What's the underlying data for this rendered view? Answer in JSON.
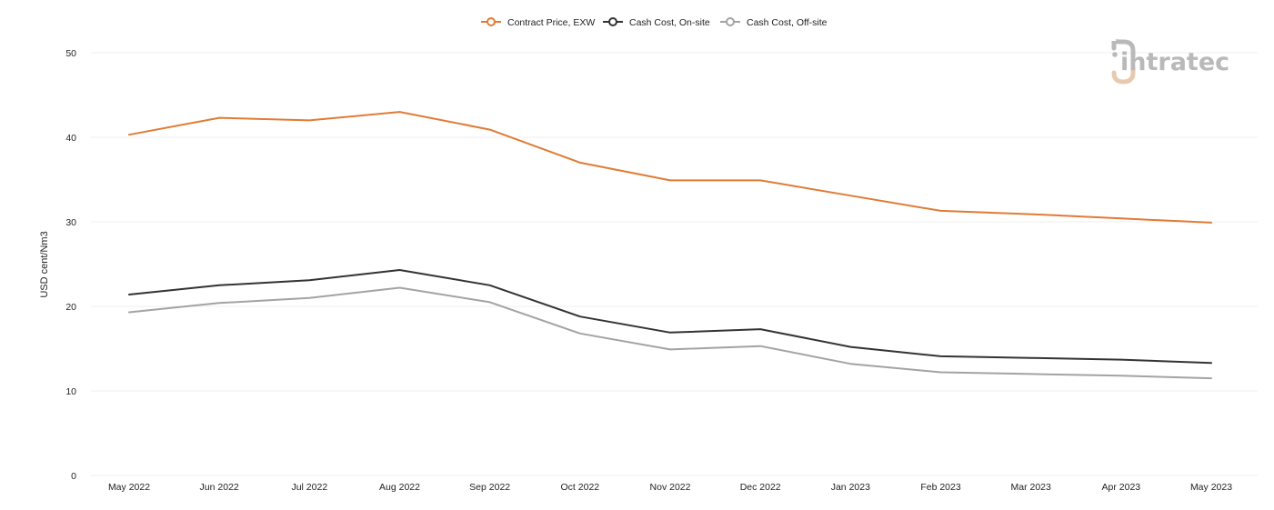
{
  "chart_data": {
    "type": "line",
    "title": "",
    "xlabel": "",
    "ylabel": "USD cent/Nm3",
    "ylim": [
      0,
      50
    ],
    "yticks": [
      0,
      10,
      20,
      30,
      40,
      50
    ],
    "grid": "horizontal",
    "legend_position": "top-center",
    "categories": [
      "May 2022",
      "Jun 2022",
      "Jul 2022",
      "Aug 2022",
      "Sep 2022",
      "Oct 2022",
      "Nov 2022",
      "Dec 2022",
      "Jan 2023",
      "Feb 2023",
      "Mar 2023",
      "Apr 2023",
      "May 2023"
    ],
    "series": [
      {
        "name": "Contract Price, EXW",
        "color": "#e07b35",
        "values": [
          40.3,
          42.3,
          42.0,
          43.0,
          40.9,
          37.0,
          34.9,
          34.9,
          33.1,
          31.3,
          30.9,
          30.4,
          29.9
        ]
      },
      {
        "name": "Cash Cost, On-site",
        "color": "#333333",
        "values": [
          21.4,
          22.5,
          23.1,
          24.3,
          22.5,
          18.8,
          16.9,
          17.3,
          15.2,
          14.1,
          13.9,
          13.7,
          13.3
        ]
      },
      {
        "name": "Cash Cost, Off-site",
        "color": "#a3a3a3",
        "values": [
          19.3,
          20.4,
          21.0,
          22.2,
          20.5,
          16.8,
          14.9,
          15.3,
          13.2,
          12.2,
          12.0,
          11.8,
          11.5
        ]
      }
    ]
  },
  "logo": {
    "text": "intratec",
    "icon": "intratec-logo-icon"
  }
}
